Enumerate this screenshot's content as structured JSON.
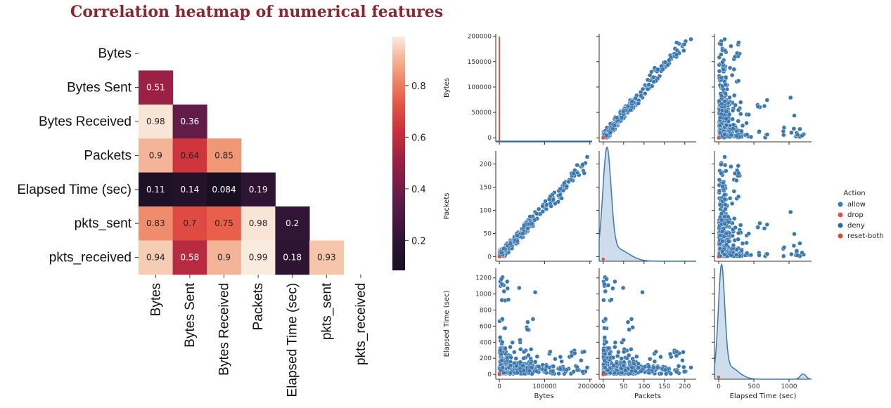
{
  "chart_data": [
    {
      "type": "heatmap",
      "title": "Correlation heatmap of numerical features",
      "labels": [
        "Bytes",
        "Bytes Sent",
        "Bytes Received",
        "Packets",
        "Elapsed Time (sec)",
        "pkts_sent",
        "pkts_received"
      ],
      "lower_triangle": [
        [],
        [
          0.51
        ],
        [
          0.98,
          0.36
        ],
        [
          0.9,
          0.64,
          0.85
        ],
        [
          0.11,
          0.14,
          0.084,
          0.19
        ],
        [
          0.83,
          0.7,
          0.75,
          0.98,
          0.2
        ],
        [
          0.94,
          0.58,
          0.9,
          0.99,
          0.18,
          0.93
        ]
      ],
      "colorbar": {
        "ticks": [
          "0.2",
          "0.4",
          "0.6",
          "0.8"
        ],
        "range": [
          0.084,
          0.99
        ]
      }
    },
    {
      "type": "scatter",
      "subtype": "pairplot",
      "variables": [
        "Bytes",
        "Packets",
        "Elapsed Time (sec)"
      ],
      "hue": "Action",
      "legend": {
        "title": "Action",
        "entries": [
          {
            "label": "allow",
            "color": "#3a78b0"
          },
          {
            "label": "drop",
            "color": "#e0533f"
          },
          {
            "label": "deny",
            "color": "#2b6b9b"
          },
          {
            "label": "reset-both",
            "color": "#d84a3b"
          }
        ],
        "position": "right"
      },
      "axes": {
        "Bytes": {
          "range": [
            -8000,
            205000
          ],
          "ticks": [
            0,
            50000,
            100000,
            150000,
            200000
          ],
          "x_ticks": [
            0,
            100000,
            200000
          ]
        },
        "Packets": {
          "range": [
            -10,
            228
          ],
          "ticks": [
            0,
            50,
            100,
            150,
            200
          ]
        },
        "Elapsed Time (sec)": {
          "range": [
            -60,
            1320
          ],
          "ticks": [
            0,
            200,
            400,
            600,
            800,
            1000,
            1200
          ],
          "x_ticks": [
            0,
            500,
            1000
          ]
        }
      },
      "points_description": "approx. 600 observations, mostly 'allow'; 'drop' observations clustered at Bytes≈0, Packets≈0, Elapsed≈0"
    }
  ]
}
